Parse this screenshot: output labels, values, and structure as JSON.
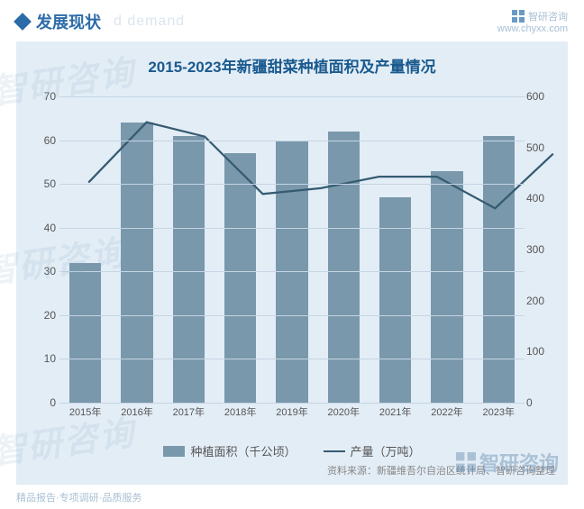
{
  "header": {
    "title": "发展现状",
    "subtitle": "d demand",
    "brand": "智研咨询",
    "brand_url": "www.chyxx.com"
  },
  "chart": {
    "type": "bar+line",
    "title": "2015-2023年新疆甜菜种植面积及产量情况",
    "background_color": "#e3edf6",
    "title_color": "#1a5a8e",
    "title_fontsize": 17,
    "categories": [
      "2015年",
      "2016年",
      "2017年",
      "2018年",
      "2019年",
      "2020年",
      "2021年",
      "2022年",
      "2023年"
    ],
    "bar_series": {
      "name": "种植面积（千公顷）",
      "values": [
        32,
        64,
        61,
        57,
        60,
        62,
        47,
        53,
        61
      ],
      "color": "#7a98ab",
      "bar_width": 0.62
    },
    "line_series": {
      "name": "产量（万吨）",
      "values": [
        450,
        555,
        530,
        430,
        440,
        460,
        460,
        405,
        500
      ],
      "color": "#355b72",
      "line_width": 2
    },
    "y_left": {
      "min": 0,
      "max": 70,
      "step": 10
    },
    "y_right": {
      "min": 0,
      "max": 600,
      "step": 100
    },
    "grid_color": "#c5d5e4",
    "label_fontsize": 12,
    "label_color": "#555"
  },
  "legend": {
    "bar_label": "种植面积（千公顷）",
    "line_label": "产量（万吨）"
  },
  "footer": {
    "left": "精品报告·专项调研·品质服务",
    "source": "资料来源：新疆维吾尔自治区统计局、智研咨询整理"
  },
  "watermarks": [
    "智研咨询",
    "智研咨询",
    "智研咨询"
  ]
}
